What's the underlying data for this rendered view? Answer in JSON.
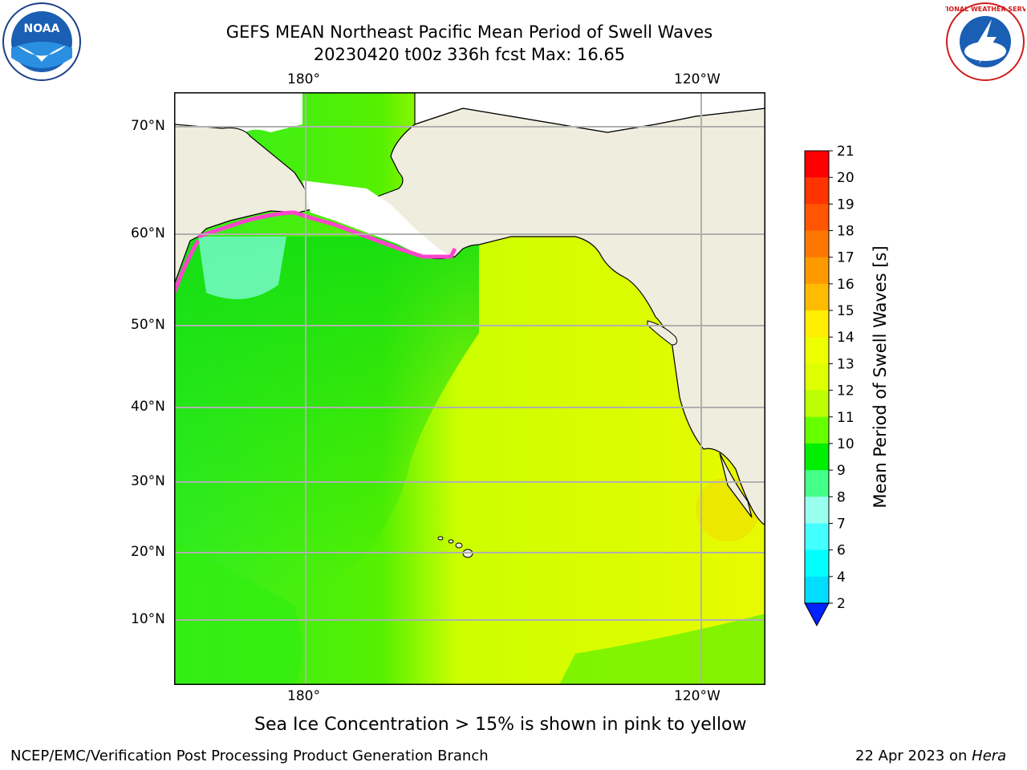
{
  "header": {
    "title_line1": "GEFS MEAN Northeast Pacific Mean Period of Swell Waves",
    "title_line2": "20230420 t00z 336h fcst   Max: 16.65"
  },
  "logos": {
    "left": "noaa-logo",
    "right": "national-weather-service-logo",
    "left_text": "NOAA",
    "right_text": "NATIONAL WEATHER SERVICE"
  },
  "map": {
    "lon_labels_top": [
      "180°",
      "120°W"
    ],
    "lon_labels_bottom": [
      "180°",
      "120°W"
    ],
    "lat_labels": [
      "70°N",
      "60°N",
      "50°N",
      "40°N",
      "30°N",
      "20°N",
      "10°N"
    ],
    "colors": {
      "land": "#efedde",
      "ice_free_white": "#ffffff",
      "grid": "#b0b0b0",
      "coast": "#000000"
    }
  },
  "colorbar": {
    "title": "Mean Period of Swell Waves [s]",
    "ticks": [
      "21",
      "20",
      "19",
      "18",
      "17",
      "16",
      "15",
      "14",
      "13",
      "12",
      "11",
      "10",
      "9",
      "8",
      "7",
      "6",
      "4",
      "2"
    ],
    "colors": [
      "#ff0000",
      "#ff3300",
      "#ff5500",
      "#ff7700",
      "#ff9900",
      "#ffbb00",
      "#ffee00",
      "#eeff00",
      "#ddff00",
      "#bbff00",
      "#66ff00",
      "#00ee00",
      "#44ff88",
      "#99ffee",
      "#44ffff",
      "#00ffff",
      "#00ddff",
      "#0088ff",
      "#0022ff"
    ]
  },
  "caption": "Sea Ice Concentration > 15% is shown in pink to yellow",
  "footer": {
    "left": "NCEP/EMC/Verification Post Processing Product Generation Branch",
    "right_prefix": "22 Apr 2023 on ",
    "right_italic": "Hera"
  }
}
